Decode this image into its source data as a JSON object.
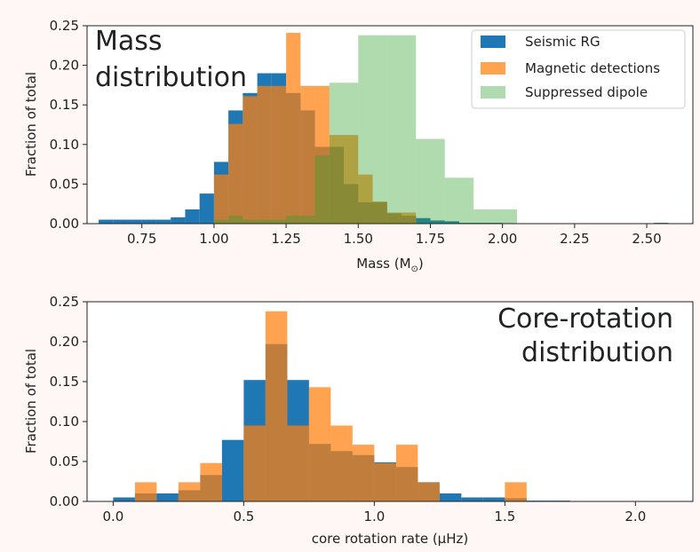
{
  "colors": {
    "seismic": "#1f77b4",
    "magnetic": "#ff7f0e",
    "suppressed": "#2ca02c",
    "axis": "#222222",
    "page_background": "#fff7f5"
  },
  "chart_data": [
    {
      "type": "bar",
      "subtype": "overlaid-histogram",
      "annotation": [
        "Mass",
        "distribution"
      ],
      "xlabel": "Mass (M",
      "xlabel_sub": "⊙",
      "xlabel_end": ")",
      "ylabel": "Fraction of total",
      "xlim": [
        0.56,
        2.66
      ],
      "ylim": [
        0,
        0.25
      ],
      "xticks": [
        0.75,
        1.0,
        1.25,
        1.5,
        1.75,
        2.0,
        2.25,
        2.5
      ],
      "xtick_labels": [
        "0.75",
        "1.00",
        "1.25",
        "1.50",
        "1.75",
        "2.00",
        "2.25",
        "2.50"
      ],
      "yticks": [
        0.0,
        0.05,
        0.1,
        0.15,
        0.2,
        0.25
      ],
      "ytick_labels": [
        "0.00",
        "0.05",
        "0.10",
        "0.15",
        "0.20",
        "0.25"
      ],
      "legend_position": "top-right",
      "series": [
        {
          "name": "Seismic RG",
          "color": "#1f77b4",
          "opacity": 1.0,
          "bins": [
            [
              0.625,
              0.005
            ],
            [
              0.675,
              0.005
            ],
            [
              0.725,
              0.005
            ],
            [
              0.775,
              0.005
            ],
            [
              0.825,
              0.005
            ],
            [
              0.875,
              0.008
            ],
            [
              0.925,
              0.018
            ],
            [
              0.975,
              0.038
            ],
            [
              1.025,
              0.078
            ],
            [
              1.075,
              0.143
            ],
            [
              1.125,
              0.165
            ],
            [
              1.175,
              0.19
            ],
            [
              1.225,
              0.19
            ],
            [
              1.275,
              0.165
            ],
            [
              1.325,
              0.143
            ],
            [
              1.375,
              0.097
            ],
            [
              1.425,
              0.097
            ],
            [
              1.475,
              0.05
            ],
            [
              1.525,
              0.027
            ],
            [
              1.575,
              0.027
            ],
            [
              1.625,
              0.013
            ],
            [
              1.675,
              0.01
            ],
            [
              1.725,
              0.007
            ],
            [
              1.775,
              0.004
            ],
            [
              1.825,
              0.003
            ],
            [
              1.875,
              0.001
            ],
            [
              1.925,
              0.001
            ],
            [
              1.975,
              0.001
            ],
            [
              2.55,
              0.001
            ]
          ]
        },
        {
          "name": "Magnetic detections",
          "color": "#ff7f0e",
          "opacity": 0.72,
          "bins": [
            [
              1.025,
              0.062
            ],
            [
              1.075,
              0.126
            ],
            [
              1.125,
              0.161
            ],
            [
              1.175,
              0.174
            ],
            [
              1.225,
              0.174
            ],
            [
              1.275,
              0.241
            ],
            [
              1.325,
              0.174
            ],
            [
              1.375,
              0.174
            ],
            [
              1.425,
              0.112
            ],
            [
              1.475,
              0.112
            ],
            [
              1.525,
              0.062
            ],
            [
              1.575,
              0.028
            ],
            [
              1.625,
              0.014
            ],
            [
              1.675,
              0.014
            ]
          ]
        },
        {
          "name": "Suppressed dipole",
          "color": "#2ca02c",
          "opacity": 0.38,
          "bins": [
            [
              1.025,
              0.005
            ],
            [
              1.075,
              0.01
            ],
            [
              1.125,
              0.005
            ],
            [
              1.175,
              0.005
            ],
            [
              1.225,
              0.005
            ],
            [
              1.275,
              0.01
            ],
            [
              1.325,
              0.01
            ],
            [
              1.375,
              0.086
            ],
            [
              1.425,
              0.178
            ],
            [
              1.475,
              0.178
            ],
            [
              1.525,
              0.238
            ],
            [
              1.575,
              0.238
            ],
            [
              1.625,
              0.238
            ],
            [
              1.675,
              0.238
            ],
            [
              1.725,
              0.107
            ],
            [
              1.775,
              0.107
            ],
            [
              1.825,
              0.058
            ],
            [
              1.875,
              0.058
            ],
            [
              1.925,
              0.018
            ],
            [
              1.975,
              0.018
            ],
            [
              2.025,
              0.018
            ]
          ]
        }
      ]
    },
    {
      "type": "bar",
      "subtype": "overlaid-histogram",
      "annotation": [
        "Core-rotation",
        "distribution"
      ],
      "xlabel": "core rotation rate (μHz)",
      "ylabel": "Fraction of total",
      "xlim": [
        -0.1,
        2.22
      ],
      "ylim": [
        0,
        0.25
      ],
      "xticks": [
        0.0,
        0.5,
        1.0,
        1.5,
        2.0
      ],
      "xtick_labels": [
        "0.0",
        "0.5",
        "1.0",
        "1.5",
        "2.0"
      ],
      "yticks": [
        0.0,
        0.05,
        0.1,
        0.15,
        0.2,
        0.25
      ],
      "ytick_labels": [
        "0.00",
        "0.05",
        "0.10",
        "0.15",
        "0.20",
        "0.25"
      ],
      "series": [
        {
          "name": "Seismic RG",
          "color": "#1f77b4",
          "opacity": 1.0,
          "bins": [
            [
              0.0417,
              0.005
            ],
            [
              0.125,
              0.01
            ],
            [
              0.2083,
              0.01
            ],
            [
              0.2917,
              0.014
            ],
            [
              0.375,
              0.033
            ],
            [
              0.4583,
              0.077
            ],
            [
              0.5417,
              0.152
            ],
            [
              0.625,
              0.197
            ],
            [
              0.7083,
              0.152
            ],
            [
              0.7917,
              0.072
            ],
            [
              0.875,
              0.063
            ],
            [
              0.9583,
              0.058
            ],
            [
              1.0417,
              0.049
            ],
            [
              1.125,
              0.043
            ],
            [
              1.2083,
              0.024
            ],
            [
              1.2917,
              0.01
            ],
            [
              1.375,
              0.005
            ],
            [
              1.4583,
              0.005
            ],
            [
              1.5417,
              0.004
            ],
            [
              1.625,
              0.001
            ],
            [
              1.7083,
              0.001
            ]
          ]
        },
        {
          "name": "Magnetic detections",
          "color": "#ff7f0e",
          "opacity": 0.72,
          "bins": [
            [
              0.125,
              0.024
            ],
            [
              0.2917,
              0.024
            ],
            [
              0.375,
              0.048
            ],
            [
              0.5417,
              0.095
            ],
            [
              0.625,
              0.238
            ],
            [
              0.7083,
              0.095
            ],
            [
              0.7917,
              0.143
            ],
            [
              0.875,
              0.095
            ],
            [
              0.9583,
              0.071
            ],
            [
              1.0417,
              0.048
            ],
            [
              1.125,
              0.071
            ],
            [
              1.2083,
              0.024
            ],
            [
              1.5417,
              0.024
            ]
          ]
        }
      ]
    }
  ]
}
